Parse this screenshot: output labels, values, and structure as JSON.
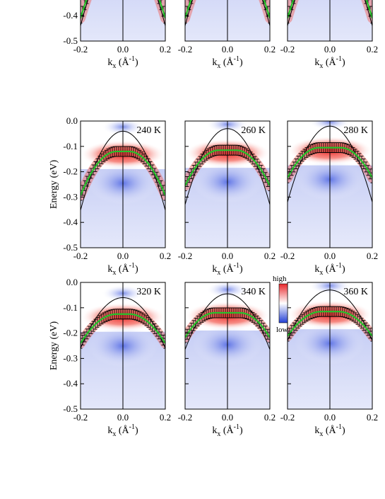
{
  "figure": {
    "ylabel": "Energy (eV)",
    "xlabel_main": "k",
    "xlabel_sub": "x",
    "xlabel_unit_open": " (Å",
    "xlabel_unit_exp": "-1",
    "xlabel_unit_close": ")",
    "colorbar": {
      "high_label": "high",
      "low_label": "low",
      "colors": [
        "#e8262a",
        "#ffffff",
        "#2340d6"
      ]
    },
    "colors": {
      "fit_line": "#25c22a",
      "model_line": "#000000",
      "hot": "#ef2a2a",
      "cold": "#3b55e0"
    }
  },
  "chart_data": {
    "type": "heatmap",
    "xlim": [
      -0.2,
      0.2
    ],
    "ylim": [
      -0.5,
      0.0
    ],
    "xticks": [
      "-0.2",
      "0.0",
      "0.2"
    ],
    "yticks": [
      "0.0",
      "-0.1",
      "-0.2",
      "-0.3",
      "-0.4",
      "-0.5"
    ],
    "panels": [
      {
        "temperature": "",
        "top": -0.13,
        "flat": 0.0,
        "curv": 7.0,
        "para_top": -0.12,
        "para_curv": 8.0,
        "visible_ylim": [
          -0.5,
          -0.18
        ]
      },
      {
        "temperature": "",
        "top": -0.13,
        "flat": 0.0,
        "curv": 7.0,
        "para_top": -0.12,
        "para_curv": 8.0,
        "visible_ylim": [
          -0.5,
          -0.18
        ]
      },
      {
        "temperature": "",
        "top": -0.13,
        "flat": 0.0,
        "curv": 7.0,
        "para_top": -0.12,
        "para_curv": 8.0,
        "visible_ylim": [
          -0.5,
          -0.18
        ]
      },
      {
        "temperature": "240 K",
        "top": -0.12,
        "flat": 0.03,
        "curv": 6.0,
        "para_top": -0.04,
        "para_curv": 7.8
      },
      {
        "temperature": "260 K",
        "top": -0.115,
        "flat": 0.04,
        "curv": 5.5,
        "para_top": -0.03,
        "para_curv": 7.5
      },
      {
        "temperature": "280 K",
        "top": -0.105,
        "flat": 0.05,
        "curv": 5.3,
        "para_top": -0.02,
        "para_curv": 7.5
      },
      {
        "temperature": "320 K",
        "top": -0.125,
        "flat": 0.03,
        "curv": 4.0,
        "para_top": -0.06,
        "para_curv": 5.0
      },
      {
        "temperature": "340 K",
        "top": -0.12,
        "flat": 0.06,
        "curv": 5.0,
        "para_top": -0.045,
        "para_curv": 5.5
      },
      {
        "temperature": "360 K",
        "top": -0.115,
        "flat": 0.04,
        "curv": 3.8,
        "para_top": -0.03,
        "para_curv": 5.0
      }
    ]
  }
}
